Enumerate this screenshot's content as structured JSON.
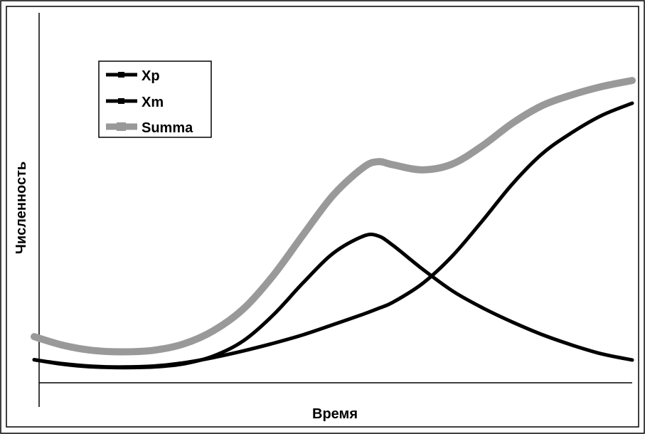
{
  "chart_data": {
    "type": "line",
    "title": "",
    "xlabel": "Время",
    "ylabel": "Численность",
    "xlim": [
      0,
      100
    ],
    "ylim": [
      0,
      100
    ],
    "grid": false,
    "legend_position": "top-left",
    "x": [
      0,
      5,
      10,
      15,
      20,
      25,
      30,
      35,
      40,
      45,
      50,
      55,
      57.5,
      60,
      65,
      70,
      75,
      80,
      85,
      90,
      95,
      100
    ],
    "series": [
      {
        "name": "Xp",
        "color": "#000000",
        "values": [
          7.3,
          5.8,
          5.0,
          4.8,
          5.0,
          6.0,
          8.5,
          13.3,
          21.5,
          31.7,
          41.0,
          46.4,
          46.5,
          43.5,
          35.9,
          29.0,
          23.7,
          19.2,
          15.2,
          11.9,
          9.1,
          7.2
        ]
      },
      {
        "name": "Xm",
        "color": "#000000",
        "values": [
          7.3,
          6.0,
          5.2,
          5.0,
          5.3,
          6.3,
          8.0,
          10.1,
          12.5,
          15.2,
          18.4,
          21.7,
          23.5,
          25.5,
          31.5,
          40.3,
          51.4,
          63.0,
          72.6,
          79.3,
          84.7,
          88.5
        ]
      },
      {
        "name": "Summa",
        "color": "#999999",
        "values": [
          14.6,
          11.8,
          10.2,
          9.8,
          10.3,
          12.3,
          16.5,
          23.4,
          34.0,
          46.9,
          59.4,
          68.1,
          70.0,
          69.0,
          67.4,
          69.3,
          75.1,
          82.2,
          87.8,
          91.2,
          93.8,
          95.7
        ]
      }
    ]
  }
}
